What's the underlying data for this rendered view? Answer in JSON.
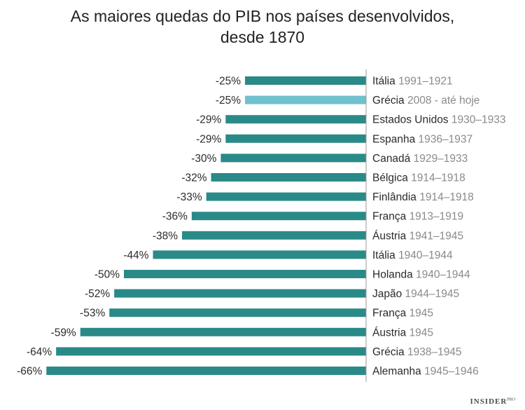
{
  "chart_data": {
    "type": "bar",
    "orientation": "horizontal",
    "title_lines": [
      "As maiores quedas do PIB nos países desenvolvidos,",
      "desde 1870"
    ],
    "value_suffix": "%",
    "bars": [
      {
        "country": "Itália",
        "period": "1991–1921",
        "value": -25,
        "label": "-25%",
        "highlight": false
      },
      {
        "country": "Grécia",
        "period": "2008 - até hoje",
        "value": -25,
        "label": "-25%",
        "highlight": true
      },
      {
        "country": "Estados Unidos",
        "period": "1930–1933",
        "value": -29,
        "label": "-29%",
        "highlight": false
      },
      {
        "country": "Espanha",
        "period": "1936–1937",
        "value": -29,
        "label": "-29%",
        "highlight": false
      },
      {
        "country": "Canadá",
        "period": "1929–1933",
        "value": -30,
        "label": "-30%",
        "highlight": false
      },
      {
        "country": "Bélgica",
        "period": "1914–1918",
        "value": -32,
        "label": "-32%",
        "highlight": false
      },
      {
        "country": "Finlândia",
        "period": "1914–1918",
        "value": -33,
        "label": "-33%",
        "highlight": false
      },
      {
        "country": "França",
        "period": "1913–1919",
        "value": -36,
        "label": "-36%",
        "highlight": false
      },
      {
        "country": "Áustria",
        "period": "1941–1945",
        "value": -38,
        "label": "-38%",
        "highlight": false
      },
      {
        "country": "Itália",
        "period": "1940–1944",
        "value": -44,
        "label": "-44%",
        "highlight": false
      },
      {
        "country": "Holanda",
        "period": "1940–1944",
        "value": -50,
        "label": "-50%",
        "highlight": false
      },
      {
        "country": "Japão",
        "period": "1944–1945",
        "value": -52,
        "label": "-52%",
        "highlight": false
      },
      {
        "country": "França",
        "period": "1945",
        "value": -53,
        "label": "-53%",
        "highlight": false
      },
      {
        "country": "Áustria",
        "period": "1945",
        "value": -59,
        "label": "-59%",
        "highlight": false
      },
      {
        "country": "Grécia",
        "period": "1938–1945",
        "value": -64,
        "label": "-64%",
        "highlight": false
      },
      {
        "country": "Alemanha",
        "period": "1945–1946",
        "value": -66,
        "label": "-66%",
        "highlight": false
      }
    ],
    "colors": {
      "bar": "#2a8a88",
      "highlight": "#6fc1cd",
      "country_text": "#2b2b2b",
      "period_text": "#8a8a8a",
      "axis": "#999999"
    }
  },
  "logo": {
    "text": "INSIDER",
    "sup": "PRO"
  }
}
